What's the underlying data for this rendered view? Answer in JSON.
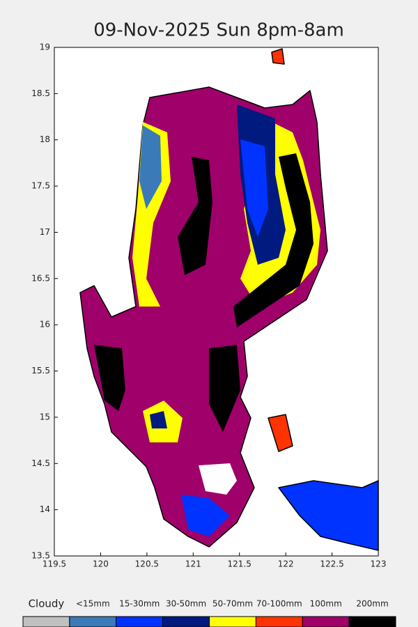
{
  "chart_data": {
    "type": "map",
    "title": "09-Nov-2025 Sun 8pm-8am",
    "xlim": [
      119.5,
      123
    ],
    "ylim": [
      13.5,
      19
    ],
    "xticks": [
      119.5,
      120,
      120.5,
      121,
      121.5,
      122,
      122.5,
      123
    ],
    "yticks": [
      13.5,
      14,
      14.5,
      15,
      15.5,
      16,
      16.5,
      17,
      17.5,
      18,
      18.5,
      19
    ],
    "legend": [
      {
        "label": "Cloudy",
        "color": "#c0c0c0"
      },
      {
        "label": "<15mm",
        "color": "#3a7ab8"
      },
      {
        "label": "15-30mm",
        "color": "#0033ff"
      },
      {
        "label": "30-50mm",
        "color": "#001a80"
      },
      {
        "label": "50-70mm",
        "color": "#ffff00"
      },
      {
        "label": "70-100mm",
        "color": "#ff3300"
      },
      {
        "label": "100mm",
        "color": "#a0006a"
      },
      {
        "label": "200mm",
        "color": "#000000"
      }
    ]
  }
}
